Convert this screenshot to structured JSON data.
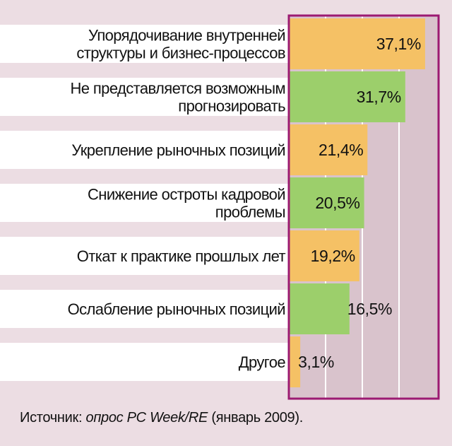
{
  "chart_data": {
    "type": "bar",
    "orientation": "horizontal",
    "categories": [
      [
        "Упорядочивание внутренней",
        "структуры и бизнес-процессов"
      ],
      [
        "Не представляется возможным",
        "прогнозировать"
      ],
      [
        "Укрепление рыночных позиций"
      ],
      [
        "Снижение остроты кадровой",
        "проблемы"
      ],
      [
        "Откат к практике прошлых лет"
      ],
      [
        "Ослабление рыночных позиций"
      ],
      [
        "Другое"
      ]
    ],
    "values": [
      37.1,
      31.7,
      21.4,
      20.5,
      19.2,
      16.5,
      3.1
    ],
    "value_labels": [
      "37,1%",
      "31,7%",
      "21,4%",
      "20,5%",
      "19,2%",
      "16,5%",
      "3,1%"
    ],
    "bar_colors": [
      "#f5c165",
      "#9ccf6b",
      "#f5c165",
      "#9ccf6b",
      "#f5c165",
      "#9ccf6b",
      "#f5c165"
    ],
    "xlim": [
      0,
      40
    ],
    "grid": true,
    "title": "",
    "xlabel": "",
    "ylabel": ""
  },
  "source": {
    "prefix": "Источник: ",
    "text": "опрос PC Week/RE",
    "suffix": " (январь 2009)."
  },
  "colors": {
    "background": "#ecdde3",
    "plot_background": "#d9c3cc",
    "frame": "#9c1a72",
    "gridline": "#ffffff",
    "row_band": "#ffffff"
  }
}
